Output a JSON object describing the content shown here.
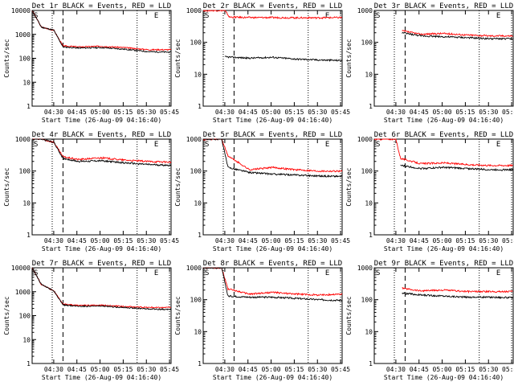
{
  "chart_data": {
    "type": "line",
    "layout": "3x3 grid",
    "y_scale": "log",
    "ylim": [
      1,
      10000
    ],
    "ylabel": "Counts/sec",
    "xlabel": "Start Time (26-Aug-09 04:16:40)",
    "x_tick_labels": [
      "04:30",
      "04:45",
      "05:00",
      "05:15",
      "05:30",
      "05:45"
    ],
    "x_range_minutes_after_0416": [
      0,
      90
    ],
    "y_tick_labels": [
      "1",
      "10",
      "100",
      "1000",
      "10000"
    ],
    "markers": {
      "start": "S",
      "end": "E"
    },
    "vertical_lines": [
      {
        "time": "04:29",
        "style": "dotted"
      },
      {
        "time": "04:36",
        "style": "dashed"
      },
      {
        "time": "05:24",
        "style": "dotted"
      },
      {
        "time": "05:45",
        "style": "dotted"
      }
    ],
    "series_colors": {
      "events": "#000000",
      "lld": "#ff0000"
    },
    "panels": [
      {
        "title": "Det 1r BLACK = Events, RED = LLD",
        "y_top": 10000,
        "events": [
          [
            0,
            10000
          ],
          [
            6,
            2000
          ],
          [
            14,
            1500
          ],
          [
            20,
            300
          ],
          [
            30,
            270
          ],
          [
            45,
            280
          ],
          [
            60,
            240
          ],
          [
            75,
            190
          ],
          [
            90,
            180
          ]
        ],
        "lld": [
          [
            0,
            10000
          ],
          [
            6,
            2000
          ],
          [
            14,
            1500
          ],
          [
            20,
            330
          ],
          [
            30,
            300
          ],
          [
            45,
            320
          ],
          [
            60,
            280
          ],
          [
            75,
            230
          ],
          [
            90,
            230
          ]
        ]
      },
      {
        "title": "Det 2r BLACK = Events, RED = LLD",
        "y_top": 1000,
        "events": [
          [
            14,
            35
          ],
          [
            30,
            32
          ],
          [
            45,
            34
          ],
          [
            60,
            30
          ],
          [
            75,
            28
          ],
          [
            90,
            27
          ]
        ],
        "lld": [
          [
            0,
            1000
          ],
          [
            14,
            1000
          ],
          [
            17,
            620
          ],
          [
            30,
            600
          ],
          [
            45,
            600
          ],
          [
            60,
            590
          ],
          [
            75,
            590
          ],
          [
            90,
            600
          ]
        ]
      },
      {
        "title": "Det 3r BLACK = Events, RED = LLD",
        "y_top": 1000,
        "events": [
          [
            18,
            200
          ],
          [
            30,
            160
          ],
          [
            45,
            150
          ],
          [
            60,
            140
          ],
          [
            75,
            130
          ],
          [
            90,
            130
          ]
        ],
        "lld": [
          [
            18,
            230
          ],
          [
            30,
            180
          ],
          [
            45,
            190
          ],
          [
            60,
            170
          ],
          [
            75,
            160
          ],
          [
            90,
            160
          ]
        ]
      },
      {
        "title": "Det 4r BLACK = Events, RED = LLD",
        "y_top": 1000,
        "events": [
          [
            0,
            1000
          ],
          [
            6,
            1000
          ],
          [
            14,
            800
          ],
          [
            20,
            250
          ],
          [
            30,
            200
          ],
          [
            45,
            210
          ],
          [
            60,
            180
          ],
          [
            75,
            160
          ],
          [
            90,
            150
          ]
        ],
        "lld": [
          [
            0,
            1000
          ],
          [
            6,
            1000
          ],
          [
            14,
            800
          ],
          [
            20,
            280
          ],
          [
            30,
            230
          ],
          [
            45,
            260
          ],
          [
            60,
            220
          ],
          [
            75,
            200
          ],
          [
            90,
            190
          ]
        ]
      },
      {
        "title": "Det 5r BLACK = Events, RED = LLD",
        "y_top": 1000,
        "events": [
          [
            0,
            1000
          ],
          [
            12,
            1000
          ],
          [
            16,
            130
          ],
          [
            30,
            90
          ],
          [
            45,
            80
          ],
          [
            60,
            75
          ],
          [
            75,
            70
          ],
          [
            90,
            68
          ]
        ],
        "lld": [
          [
            0,
            1000
          ],
          [
            12,
            1000
          ],
          [
            16,
            300
          ],
          [
            30,
            110
          ],
          [
            45,
            130
          ],
          [
            60,
            110
          ],
          [
            75,
            100
          ],
          [
            90,
            100
          ]
        ]
      },
      {
        "title": "Det 6r BLACK = Events, RED = LLD",
        "y_top": 1000,
        "events": [
          [
            17,
            150
          ],
          [
            30,
            120
          ],
          [
            45,
            130
          ],
          [
            60,
            120
          ],
          [
            75,
            110
          ],
          [
            90,
            110
          ]
        ],
        "lld": [
          [
            0,
            1000
          ],
          [
            14,
            1000
          ],
          [
            17,
            250
          ],
          [
            30,
            170
          ],
          [
            45,
            180
          ],
          [
            60,
            160
          ],
          [
            75,
            150
          ],
          [
            90,
            150
          ]
        ]
      },
      {
        "title": "Det 7r BLACK = Events, RED = LLD",
        "y_top": 10000,
        "events": [
          [
            0,
            10000
          ],
          [
            6,
            2000
          ],
          [
            14,
            1100
          ],
          [
            20,
            280
          ],
          [
            30,
            250
          ],
          [
            45,
            250
          ],
          [
            60,
            220
          ],
          [
            75,
            190
          ],
          [
            90,
            180
          ]
        ],
        "lld": [
          [
            0,
            10000
          ],
          [
            6,
            2000
          ],
          [
            14,
            1100
          ],
          [
            20,
            300
          ],
          [
            30,
            270
          ],
          [
            45,
            270
          ],
          [
            60,
            240
          ],
          [
            75,
            220
          ],
          [
            90,
            220
          ]
        ]
      },
      {
        "title": "Det 8r BLACK = Events, RED = LLD",
        "y_top": 1000,
        "events": [
          [
            0,
            1000
          ],
          [
            12,
            1000
          ],
          [
            16,
            130
          ],
          [
            30,
            120
          ],
          [
            45,
            120
          ],
          [
            60,
            110
          ],
          [
            75,
            100
          ],
          [
            90,
            95
          ]
        ],
        "lld": [
          [
            0,
            1000
          ],
          [
            12,
            1000
          ],
          [
            16,
            220
          ],
          [
            30,
            150
          ],
          [
            45,
            170
          ],
          [
            60,
            150
          ],
          [
            75,
            140
          ],
          [
            90,
            150
          ]
        ]
      },
      {
        "title": "Det 9r BLACK = Events, RED = LLD",
        "y_top": 1000,
        "events": [
          [
            18,
            160
          ],
          [
            30,
            140
          ],
          [
            45,
            130
          ],
          [
            60,
            120
          ],
          [
            75,
            120
          ],
          [
            90,
            115
          ]
        ],
        "lld": [
          [
            18,
            230
          ],
          [
            30,
            190
          ],
          [
            45,
            200
          ],
          [
            60,
            180
          ],
          [
            75,
            180
          ],
          [
            90,
            180
          ]
        ]
      }
    ]
  }
}
